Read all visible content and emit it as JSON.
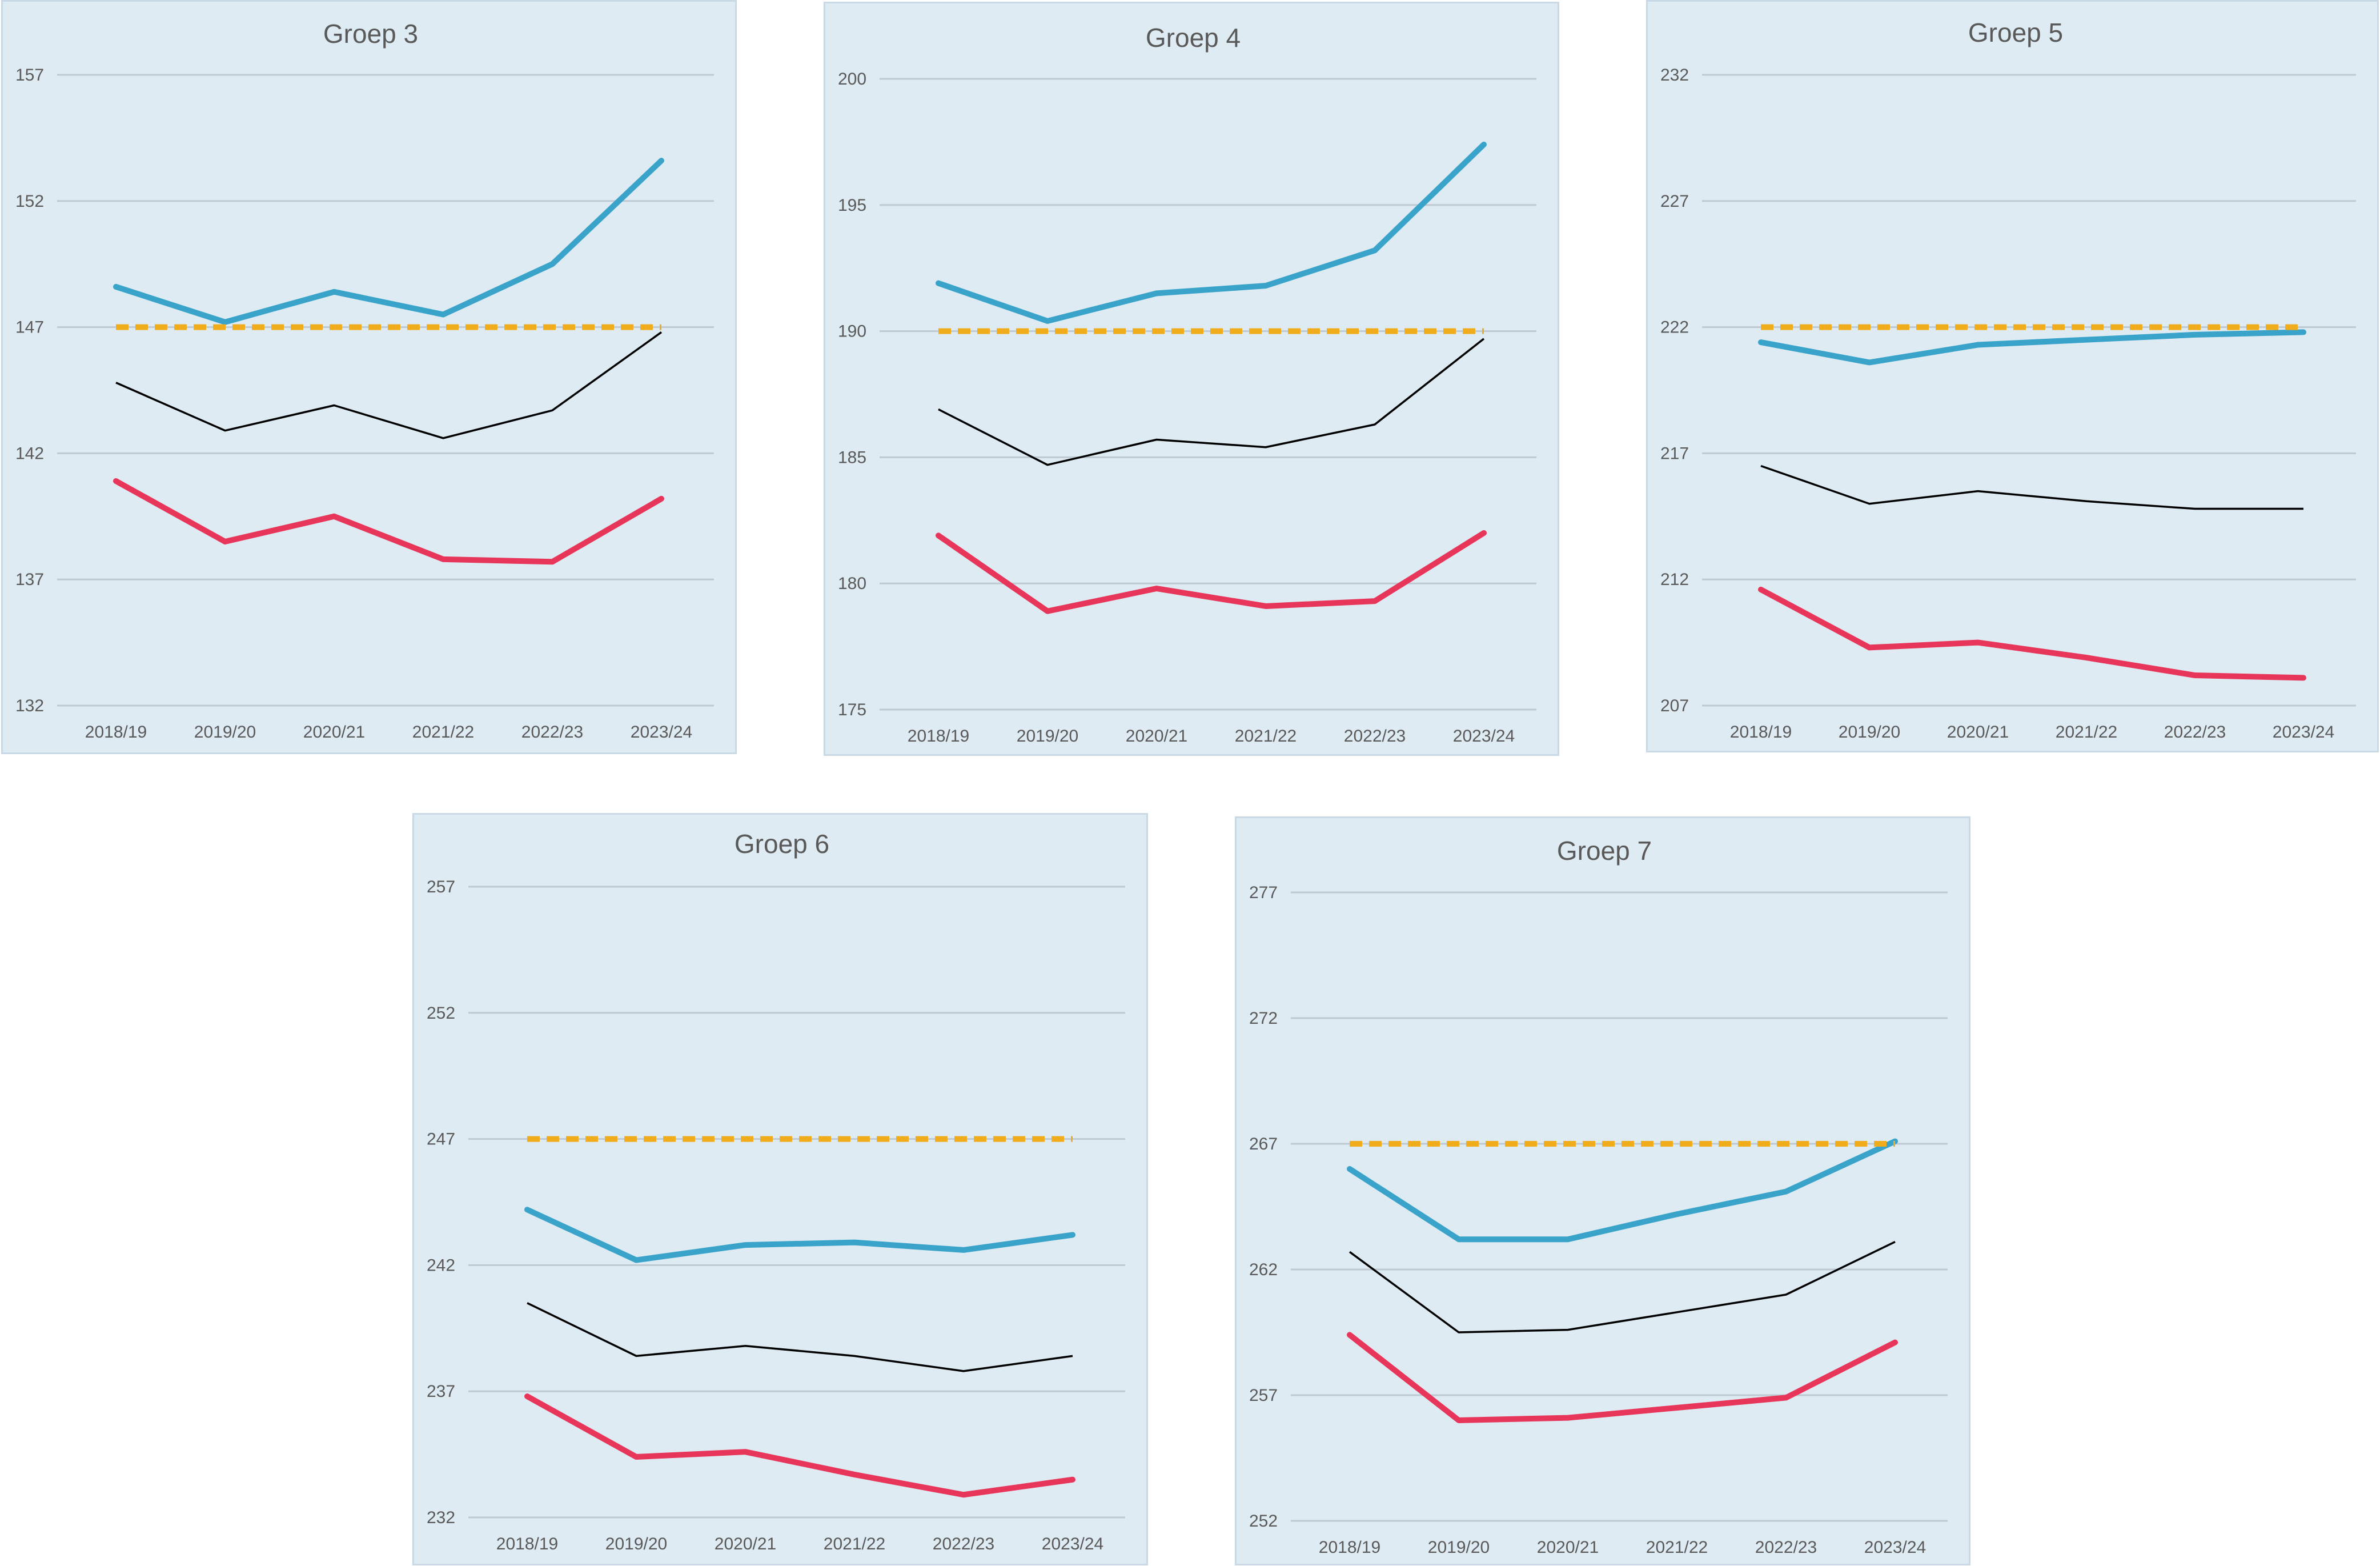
{
  "chart_data": [
    {
      "type": "line",
      "title": "Groep 3",
      "categories": [
        "2018/19",
        "2019/20",
        "2020/21",
        "2021/22",
        "2022/23",
        "2023/24"
      ],
      "ylim": [
        132,
        157
      ],
      "yticks": [
        132,
        137,
        142,
        147,
        152,
        157
      ],
      "series": [
        {
          "name": "blauw",
          "color": "#3aa3c9",
          "style": "solid",
          "values": [
            148.6,
            147.2,
            148.4,
            147.5,
            149.5,
            153.6
          ]
        },
        {
          "name": "oranje",
          "color": "#f0ac1b",
          "style": "dashed",
          "values": [
            147.0,
            147.0,
            147.0,
            147.0,
            147.0,
            147.0
          ]
        },
        {
          "name": "zwart",
          "color": "#000000",
          "style": "solid",
          "values": [
            144.8,
            142.9,
            143.9,
            142.6,
            143.7,
            146.8
          ]
        },
        {
          "name": "rood",
          "color": "#e8365a",
          "style": "solid",
          "values": [
            140.9,
            138.5,
            139.5,
            137.8,
            137.7,
            140.2
          ]
        }
      ]
    },
    {
      "type": "line",
      "title": "Groep 4",
      "categories": [
        "2018/19",
        "2019/20",
        "2020/21",
        "2021/22",
        "2022/23",
        "2023/24"
      ],
      "ylim": [
        175,
        200
      ],
      "yticks": [
        175,
        180,
        185,
        190,
        195,
        200
      ],
      "series": [
        {
          "name": "blauw",
          "color": "#3aa3c9",
          "style": "solid",
          "values": [
            191.9,
            190.4,
            191.5,
            191.8,
            193.2,
            197.4
          ]
        },
        {
          "name": "oranje",
          "color": "#f0ac1b",
          "style": "dashed",
          "values": [
            190.0,
            190.0,
            190.0,
            190.0,
            190.0,
            190.0
          ]
        },
        {
          "name": "zwart",
          "color": "#000000",
          "style": "solid",
          "values": [
            186.9,
            184.7,
            185.7,
            185.4,
            186.3,
            189.7
          ]
        },
        {
          "name": "rood",
          "color": "#e8365a",
          "style": "solid",
          "values": [
            181.9,
            178.9,
            179.8,
            179.1,
            179.3,
            182.0
          ]
        }
      ]
    },
    {
      "type": "line",
      "title": "Groep 5",
      "categories": [
        "2018/19",
        "2019/20",
        "2020/21",
        "2021/22",
        "2022/23",
        "2023/24"
      ],
      "ylim": [
        207,
        232
      ],
      "yticks": [
        207,
        212,
        217,
        222,
        227,
        232
      ],
      "series": [
        {
          "name": "blauw",
          "color": "#3aa3c9",
          "style": "solid",
          "values": [
            221.4,
            220.6,
            221.3,
            221.5,
            221.7,
            221.8
          ]
        },
        {
          "name": "oranje",
          "color": "#f0ac1b",
          "style": "dashed",
          "values": [
            222.0,
            222.0,
            222.0,
            222.0,
            222.0,
            222.0
          ]
        },
        {
          "name": "zwart",
          "color": "#000000",
          "style": "solid",
          "values": [
            216.5,
            215.0,
            215.5,
            215.1,
            214.8,
            214.8
          ]
        },
        {
          "name": "rood",
          "color": "#e8365a",
          "style": "solid",
          "values": [
            211.6,
            209.3,
            209.5,
            208.9,
            208.2,
            208.1
          ]
        }
      ]
    },
    {
      "type": "line",
      "title": "Groep 6",
      "categories": [
        "2018/19",
        "2019/20",
        "2020/21",
        "2021/22",
        "2022/23",
        "2023/24"
      ],
      "ylim": [
        232,
        257
      ],
      "yticks": [
        232,
        237,
        242,
        247,
        252,
        257
      ],
      "series": [
        {
          "name": "blauw",
          "color": "#3aa3c9",
          "style": "solid",
          "values": [
            244.2,
            242.2,
            242.8,
            242.9,
            242.6,
            243.2
          ]
        },
        {
          "name": "oranje",
          "color": "#f0ac1b",
          "style": "dashed",
          "values": [
            247.0,
            247.0,
            247.0,
            247.0,
            247.0,
            247.0
          ]
        },
        {
          "name": "zwart",
          "color": "#000000",
          "style": "solid",
          "values": [
            240.5,
            238.4,
            238.8,
            238.4,
            237.8,
            238.4
          ]
        },
        {
          "name": "rood",
          "color": "#e8365a",
          "style": "solid",
          "values": [
            236.8,
            234.4,
            234.6,
            233.7,
            232.9,
            233.5
          ]
        }
      ]
    },
    {
      "type": "line",
      "title": "Groep 7",
      "categories": [
        "2018/19",
        "2019/20",
        "2020/21",
        "2021/22",
        "2022/23",
        "2023/24"
      ],
      "ylim": [
        252,
        277
      ],
      "yticks": [
        252,
        257,
        262,
        267,
        272,
        277
      ],
      "series": [
        {
          "name": "blauw",
          "color": "#3aa3c9",
          "style": "solid",
          "values": [
            266.0,
            263.2,
            263.2,
            264.2,
            265.1,
            267.1
          ]
        },
        {
          "name": "oranje",
          "color": "#f0ac1b",
          "style": "dashed",
          "values": [
            267.0,
            267.0,
            267.0,
            267.0,
            267.0,
            267.0
          ]
        },
        {
          "name": "zwart",
          "color": "#000000",
          "style": "solid",
          "values": [
            262.7,
            259.5,
            259.6,
            260.3,
            261.0,
            263.1
          ]
        },
        {
          "name": "rood",
          "color": "#e8365a",
          "style": "solid",
          "values": [
            259.4,
            256.0,
            256.1,
            256.5,
            256.9,
            259.1
          ]
        }
      ]
    }
  ]
}
